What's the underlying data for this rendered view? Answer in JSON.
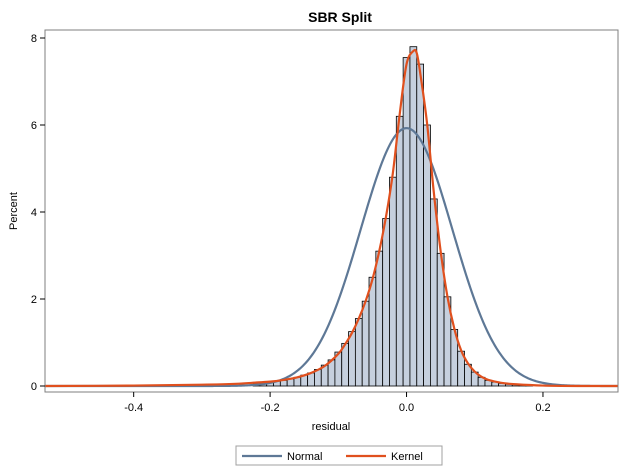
{
  "chart_data": {
    "type": "bar",
    "title": "SBR Split",
    "xlabel": "residual",
    "ylabel": "Percent",
    "xlim": [
      -0.53,
      0.31
    ],
    "ylim": [
      0,
      8
    ],
    "x_ticks": [
      -0.4,
      -0.2,
      0,
      0.2
    ],
    "x_tick_labels": [
      "-0.4",
      "-0.2",
      "0.0",
      "0.2"
    ],
    "y_ticks": [
      0,
      2,
      4,
      6,
      8
    ],
    "y_tick_labels": [
      "0",
      "2",
      "4",
      "6",
      "8"
    ],
    "grid": false,
    "legend_position": "bottom",
    "histogram": {
      "bin_width": 0.01,
      "bin_centers": [
        -0.22,
        -0.21,
        -0.2,
        -0.19,
        -0.18,
        -0.17,
        -0.16,
        -0.15,
        -0.14,
        -0.13,
        -0.12,
        -0.11,
        -0.1,
        -0.09,
        -0.08,
        -0.07,
        -0.06,
        -0.05,
        -0.04,
        -0.03,
        -0.02,
        -0.01,
        0.0,
        0.01,
        0.02,
        0.03,
        0.04,
        0.05,
        0.06,
        0.07,
        0.08,
        0.09,
        0.1,
        0.11,
        0.12,
        0.13,
        0.14,
        0.15,
        0.16,
        0.17,
        0.18
      ],
      "values": [
        0.06,
        0.07,
        0.09,
        0.11,
        0.13,
        0.16,
        0.2,
        0.25,
        0.3,
        0.38,
        0.48,
        0.6,
        0.78,
        0.98,
        1.25,
        1.55,
        1.95,
        2.5,
        3.1,
        3.85,
        4.8,
        6.2,
        7.55,
        7.8,
        7.4,
        6.0,
        4.3,
        3.05,
        2.05,
        1.3,
        0.8,
        0.5,
        0.32,
        0.2,
        0.13,
        0.09,
        0.06,
        0.04,
        0.03,
        0.02,
        0.01
      ],
      "fill_color": "#c6d0de",
      "edge_color": "#000000"
    },
    "series": [
      {
        "name": "Normal",
        "color": "#5e7896",
        "mean": 0.0,
        "std_dev": 0.0673
      },
      {
        "name": "Kernel",
        "color": "#e0501e",
        "x": [
          -0.53,
          -0.4,
          -0.3,
          -0.25,
          -0.22,
          -0.2,
          -0.18,
          -0.16,
          -0.14,
          -0.12,
          -0.1,
          -0.09,
          -0.08,
          -0.07,
          -0.06,
          -0.05,
          -0.04,
          -0.03,
          -0.02,
          -0.01,
          0.0,
          0.01,
          0.015,
          0.02,
          0.03,
          0.04,
          0.05,
          0.06,
          0.07,
          0.08,
          0.09,
          0.1,
          0.11,
          0.12,
          0.14,
          0.16,
          0.2,
          0.25,
          0.31
        ],
        "y": [
          0.0,
          0.01,
          0.03,
          0.05,
          0.08,
          0.1,
          0.14,
          0.2,
          0.3,
          0.46,
          0.74,
          0.96,
          1.22,
          1.55,
          1.95,
          2.45,
          3.1,
          3.9,
          4.9,
          6.25,
          7.4,
          7.7,
          7.65,
          7.2,
          6.05,
          4.45,
          3.1,
          2.05,
          1.32,
          0.82,
          0.52,
          0.33,
          0.21,
          0.14,
          0.07,
          0.04,
          0.01,
          0.0,
          0.0
        ]
      }
    ]
  }
}
